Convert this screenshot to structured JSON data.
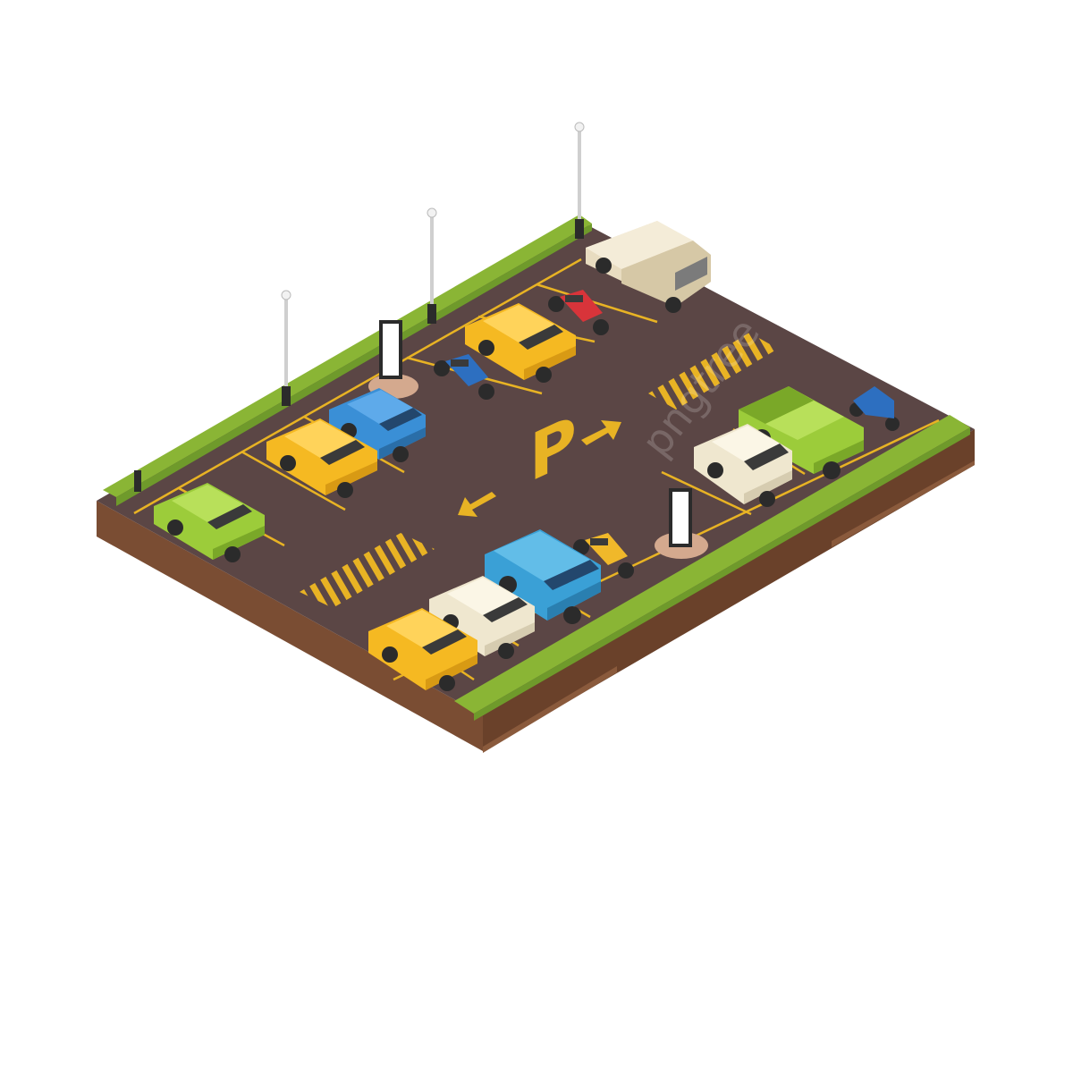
{
  "scene": {
    "description_hidden": "",
    "parking_sign_letter": "P",
    "watermark_text": "pngtree",
    "colors": {
      "background": "#ffffff",
      "asphalt": "#5b4645",
      "asphalt_shadow": "#4a3837",
      "soil_top": "#8a5a3c",
      "soil_bottom": "#6e452d",
      "grass": "#8ab535",
      "grass_edge": "#6f9a2b",
      "curb": "#d4a98e",
      "marking": "#e8b324",
      "car_yellow": "#f5b922",
      "car_blue": "#3a8fd6",
      "car_lime": "#9ccc3a",
      "car_cream": "#efe7cf",
      "car_beige": "#e8dcc0",
      "car_cyan": "#3aa0d6",
      "moto_red": "#d8343a",
      "moto_blue": "#2d6fc0",
      "moto_yellow": "#f0b82a",
      "lamp_pole": "#cfcfcf",
      "lamp_base": "#2b2b2b",
      "billboard": "#ffffff"
    },
    "icons": [
      "parking-sign-icon",
      "arrow-up-icon",
      "arrow-down-icon",
      "street-lamp-icon",
      "billboard-icon",
      "car-icon",
      "motorcycle-icon",
      "scooter-icon",
      "pickup-truck-icon",
      "van-icon"
    ]
  }
}
